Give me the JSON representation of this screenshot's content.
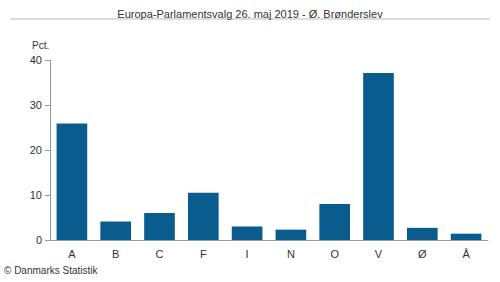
{
  "chart_data": {
    "type": "bar",
    "title": "Europa-Parlamentsvalg 26. maj 2019 - Ø. Brønderslev",
    "y_label": "Pct.",
    "source": "© Danmarks Statistik",
    "categories": [
      "A",
      "B",
      "C",
      "F",
      "I",
      "N",
      "O",
      "V",
      "Ø",
      "Å"
    ],
    "values": [
      25.9,
      4.1,
      6.0,
      10.5,
      3.0,
      2.3,
      8.0,
      37.1,
      2.7,
      1.4
    ],
    "color": "#0b5c8e",
    "ylim": [
      0,
      40
    ],
    "yticks": [
      0,
      10,
      20,
      30,
      40
    ],
    "grid": false
  }
}
